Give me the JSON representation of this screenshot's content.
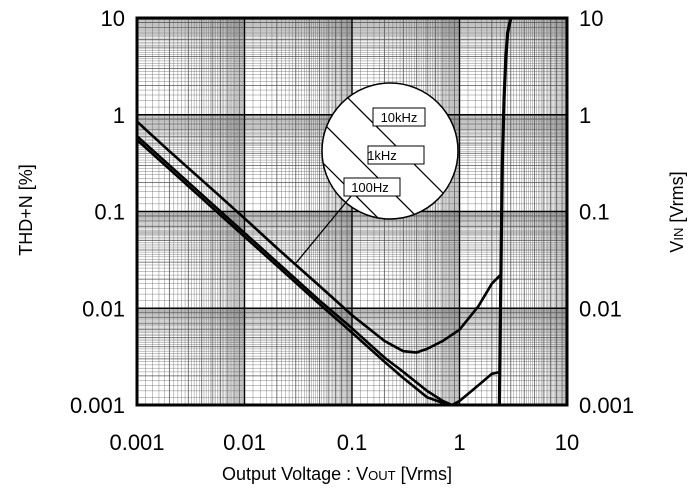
{
  "chart_data": {
    "type": "line",
    "xlabel_main": "Output Voltage : V",
    "xlabel_sub": "OUT",
    "xlabel_unit": " [Vrms]",
    "ylabel": "THD+N [%]",
    "y2label_main": "V",
    "y2label_sub": "IN",
    "y2label_unit": " [Vrms]",
    "x_scale": "log",
    "y_scale": "log",
    "y2_scale": "log",
    "xlim": [
      0.001,
      10
    ],
    "ylim": [
      0.001,
      10
    ],
    "y2lim": [
      0.001,
      10
    ],
    "grid": true,
    "x_ticks": [
      {
        "value": 0.001,
        "label": "0.001"
      },
      {
        "value": 0.01,
        "label": "0.01"
      },
      {
        "value": 0.1,
        "label": "0.1"
      },
      {
        "value": 1,
        "label": "1"
      },
      {
        "value": 10,
        "label": "10"
      }
    ],
    "y_ticks": [
      {
        "value": 0.001,
        "label": "0.001"
      },
      {
        "value": 0.01,
        "label": "0.01"
      },
      {
        "value": 0.1,
        "label": "0.1"
      },
      {
        "value": 1,
        "label": "1"
      },
      {
        "value": 10,
        "label": "10"
      }
    ],
    "y2_ticks": [
      {
        "value": 0.001,
        "label": "0.001"
      },
      {
        "value": 0.01,
        "label": "0.01"
      },
      {
        "value": 0.1,
        "label": "0.1"
      },
      {
        "value": 1,
        "label": "1"
      },
      {
        "value": 10,
        "label": "10"
      }
    ],
    "legend": {
      "placement": "inset-center",
      "entries": [
        "10kHz",
        "1kHz",
        "100Hz"
      ]
    },
    "series": [
      {
        "name": "10kHz",
        "axis": "left",
        "x": [
          0.001,
          0.002,
          0.005,
          0.01,
          0.02,
          0.05,
          0.1,
          0.2,
          0.3,
          0.4,
          0.5,
          0.7,
          1.0,
          1.5,
          2.0,
          2.4
        ],
        "y": [
          0.85,
          0.42,
          0.17,
          0.085,
          0.042,
          0.017,
          0.0085,
          0.0046,
          0.0036,
          0.0035,
          0.0038,
          0.0046,
          0.006,
          0.0105,
          0.018,
          0.022
        ]
      },
      {
        "name": "1kHz",
        "axis": "left",
        "x": [
          0.001,
          0.002,
          0.005,
          0.01,
          0.02,
          0.05,
          0.1,
          0.2,
          0.3,
          0.5,
          0.7,
          0.85,
          1.0,
          1.3,
          1.7,
          2.0,
          2.4
        ],
        "y": [
          0.6,
          0.3,
          0.12,
          0.06,
          0.03,
          0.012,
          0.0062,
          0.0031,
          0.0022,
          0.0014,
          0.0011,
          0.001,
          0.0011,
          0.0014,
          0.0018,
          0.0021,
          0.0022
        ]
      },
      {
        "name": "100Hz",
        "axis": "left",
        "x": [
          0.001,
          0.002,
          0.005,
          0.01,
          0.02,
          0.05,
          0.1,
          0.2,
          0.3,
          0.5,
          0.7,
          0.85
        ],
        "y": [
          0.55,
          0.275,
          0.11,
          0.055,
          0.0275,
          0.011,
          0.0056,
          0.0028,
          0.0019,
          0.0012,
          0.00105,
          0.001
        ]
      },
      {
        "name": "VIN",
        "axis": "right",
        "x": [
          2.35,
          2.4,
          2.45,
          2.5,
          2.6,
          2.7,
          2.8,
          3.0
        ],
        "y": [
          0.001,
          0.008,
          0.05,
          0.3,
          1.5,
          4.0,
          7.0,
          10.0
        ]
      }
    ]
  },
  "colors": {
    "line": "#000000",
    "grid": "#555555",
    "background": "#ffffff"
  }
}
